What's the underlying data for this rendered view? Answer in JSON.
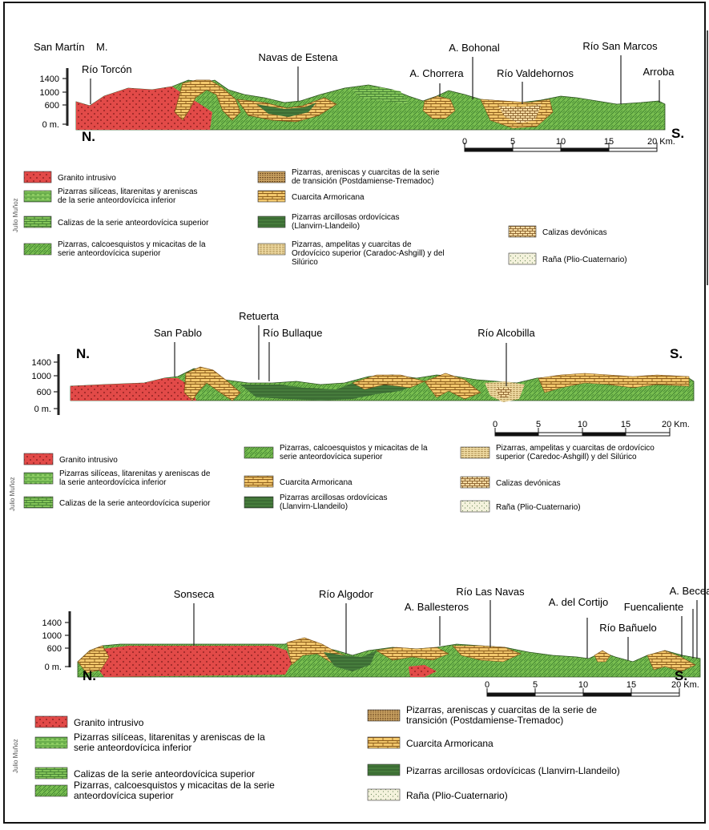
{
  "sections": [
    {
      "places": [
        {
          "key": "sanmartin",
          "label": "San Martín"
        },
        {
          "key": "m",
          "label": "M."
        },
        {
          "key": "torcon",
          "label": "Río Torcón"
        },
        {
          "key": "navas",
          "label": "Navas de Estena"
        },
        {
          "key": "bohonal",
          "label": "A. Bohonal"
        },
        {
          "key": "chorrera",
          "label": "A. Chorrera"
        },
        {
          "key": "valdehornos",
          "label": "Río Valdehornos"
        },
        {
          "key": "sanmarcos",
          "label": "Río San Marcos"
        },
        {
          "key": "arroba",
          "label": "Arroba"
        }
      ],
      "north": "N.",
      "south": "S.",
      "elev_ticks": [
        "1400",
        "1000",
        "600",
        "0 m."
      ],
      "scale_ticks": [
        "0",
        "5",
        "10",
        "15",
        "20 Km."
      ],
      "author": "Julio Muñoz",
      "legend": [
        {
          "label": "Granito intrusivo",
          "pattern": "granite"
        },
        {
          "label": "Pizarras silíceas, litarenitas y areniscas de la serie anteordovícica inferior",
          "pattern": "greenlines"
        },
        {
          "label": "Calizas de la serie anteordovícica superior",
          "pattern": "greenbrick"
        },
        {
          "label": "Pizarras, calcoesquistos y micacitas de la serie anteordovícica superior",
          "pattern": "greenhatch"
        },
        {
          "label": "Pizarras, areniscas y cuarcitas de la serie de transición (Postdamiense-Tremadoc)",
          "pattern": "transition"
        },
        {
          "label": "Cuarcita Armoricana",
          "pattern": "armoricana"
        },
        {
          "label": "Pizarras arcillosas ordovícicas (Llanvirn-Llandeilo)",
          "pattern": "darkgreen"
        },
        {
          "label": "Pizarras, ampelitas y cuarcitas de Ordovícico superior (Caradoc-Ashgill) y del Silúrico",
          "pattern": "ampelitas"
        },
        {
          "label": "Calizas devónicas",
          "pattern": "devonic"
        },
        {
          "label": "Raña (Plio-Cuaternario)",
          "pattern": "rana"
        }
      ]
    },
    {
      "places": [
        {
          "key": "retuerta",
          "label": "Retuerta"
        },
        {
          "key": "sanpablo",
          "label": "San Pablo"
        },
        {
          "key": "bullaque",
          "label": "Río Bullaque"
        },
        {
          "key": "alcobilla",
          "label": "Río Alcobilla"
        }
      ],
      "north": "N.",
      "south": "S.",
      "elev_ticks": [
        "1400",
        "1000",
        "600",
        "0 m."
      ],
      "scale_ticks": [
        "0",
        "5",
        "10",
        "15",
        "20 Km."
      ],
      "author": "Julio Muñoz",
      "legend": [
        {
          "label": "Granito intrusivo",
          "pattern": "granite"
        },
        {
          "label": "Pizarras silíceas, litarenitas y areniscas de la serie anteordovícica inferior",
          "pattern": "greenlines"
        },
        {
          "label": "Calizas de la serie anteordovícica superior",
          "pattern": "greenbrick"
        },
        {
          "label": "Pizarras, calcoesquistos y micacitas de la serie anteordovícica superior",
          "pattern": "greenhatch"
        },
        {
          "label": "Cuarcita Armoricana",
          "pattern": "armoricana"
        },
        {
          "label": "Pizarras arcillosas ordovícicas (Llanvirn-Llandeilo)",
          "pattern": "darkgreen"
        },
        {
          "label": "Pizarras, ampelitas y cuarcitas de ordovícico superior (Caredoc-Ashgill) y del Silúrico",
          "pattern": "ampelitas"
        },
        {
          "label": "Calizas devónicas",
          "pattern": "devonic"
        },
        {
          "label": "Raña (Plio-Cuaternario)",
          "pattern": "rana"
        }
      ]
    },
    {
      "places": [
        {
          "key": "becea",
          "label": "A. Becea"
        },
        {
          "key": "sonseca",
          "label": "Sonseca"
        },
        {
          "key": "algodor",
          "label": "Río Algodor"
        },
        {
          "key": "lasnavas",
          "label": "Río Las Navas"
        },
        {
          "key": "ballesteros",
          "label": "A. Ballesteros"
        },
        {
          "key": "cortijo",
          "label": "A. del Cortijo"
        },
        {
          "key": "fuencaliente",
          "label": "Fuencaliente"
        },
        {
          "key": "banuelo",
          "label": "Río Bañuelo"
        }
      ],
      "north": "N.",
      "south": "S.",
      "elev_ticks": [
        "1400",
        "1000",
        "600",
        "0 m."
      ],
      "scale_ticks": [
        "0",
        "5",
        "10",
        "15",
        "20 Km."
      ],
      "author": "Julio Muñoz",
      "legend": [
        {
          "label": "Granito intrusivo",
          "pattern": "granite"
        },
        {
          "label": "Pizarras silíceas, litarenitas y areniscas de la serie anteordovícica inferior",
          "pattern": "greenlines"
        },
        {
          "label": "Calizas de la serie anteordovícica superior",
          "pattern": "greenbrick"
        },
        {
          "label": "Pizarras, calcoesquistos y micacitas de la serie anteordovícica superior",
          "pattern": "greenhatch"
        },
        {
          "label": "Pizarras, areniscas y cuarcitas de la serie de transición (Postdamiense-Tremadoc)",
          "pattern": "transition"
        },
        {
          "label": "Cuarcita Armoricana",
          "pattern": "armoricana"
        },
        {
          "label": "Pizarras arcillosas ordovícicas (Llanvirn-Llandeilo)",
          "pattern": "darkgreen"
        },
        {
          "label": "Raña (Plio-Cuaternario)",
          "pattern": "rana"
        }
      ]
    }
  ],
  "colors": {
    "granite": "#e04848",
    "green": "#7cc256",
    "darkgreen": "#3f7a3a",
    "armoricana": "#f1c36a",
    "transition": "#c08a4a",
    "ampelitas": "#efd9a0",
    "rana": "#f2f0d8"
  }
}
